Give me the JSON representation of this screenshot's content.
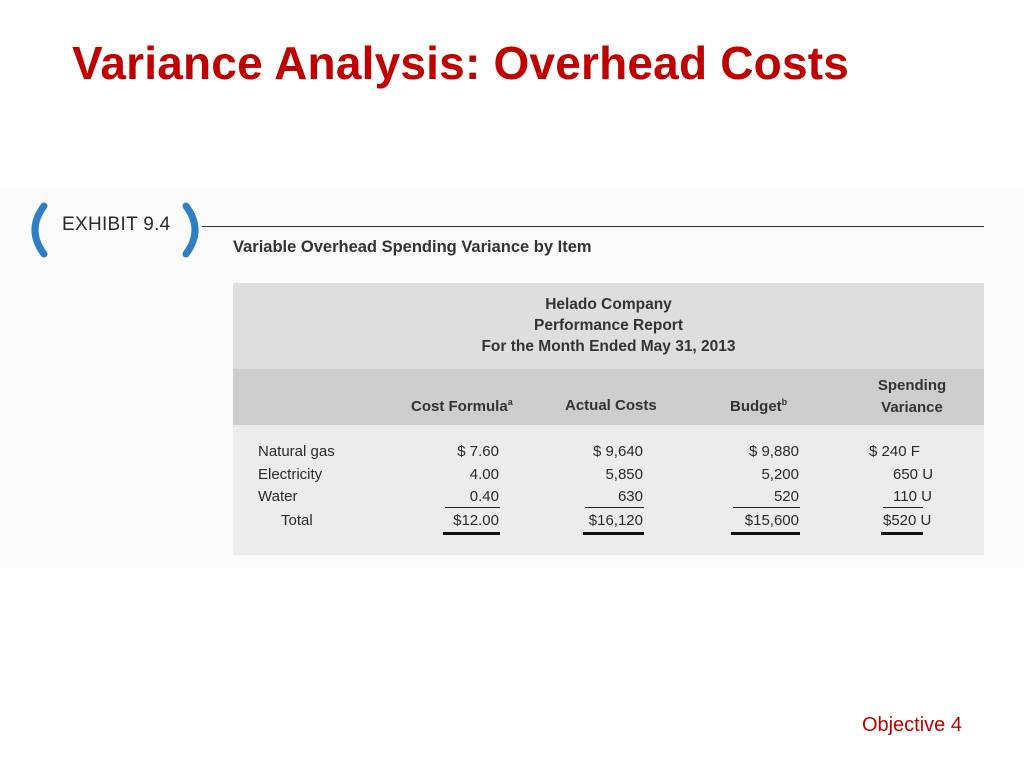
{
  "slide": {
    "title": "Variance Analysis: Overhead Costs",
    "objective": "Objective 4"
  },
  "exhibit": {
    "label": "EXHIBIT 9.4",
    "caption": "Variable Overhead Spending Variance by Item",
    "report": {
      "company": "Helado Company",
      "report_name": "Performance Report",
      "period": "For the Month Ended May 31, 2013"
    },
    "columns": {
      "cost_formula": "Cost Formula",
      "cost_formula_sup": "a",
      "actual_costs": "Actual Costs",
      "budget": "Budget",
      "budget_sup": "b",
      "variance_line1": "Spending",
      "variance_line2": "Variance"
    },
    "rows": [
      {
        "item": "Natural gas",
        "cost_formula": "$ 7.60",
        "actual": "$ 9,640",
        "budget": "$ 9,880",
        "variance": "$ 240 F"
      },
      {
        "item": "Electricity",
        "cost_formula": "4.00",
        "actual": "5,850",
        "budget": "5,200",
        "variance": "650 U"
      },
      {
        "item": "Water",
        "cost_formula": "0.40",
        "actual": "630",
        "budget": "520",
        "variance": "110 U"
      },
      {
        "item": "Total",
        "cost_formula": "$12.00",
        "actual": "$16,120",
        "budget": "$15,600",
        "variance": "$520 U"
      }
    ]
  },
  "colors": {
    "title_red": "#c00000",
    "exhibit_blue": "#2e7fc4"
  }
}
